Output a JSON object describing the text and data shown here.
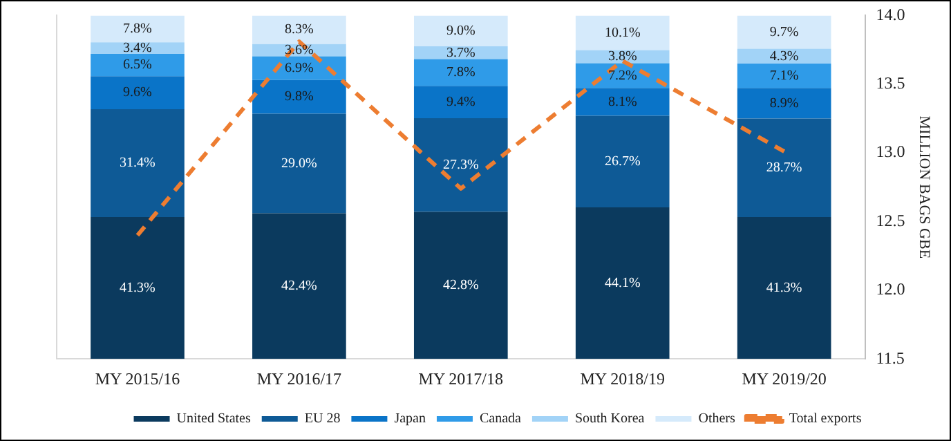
{
  "chart_data": {
    "type": "bar",
    "stacked": true,
    "categories": [
      "MY 2015/16",
      "MY 2016/17",
      "MY 2017/18",
      "MY 2018/19",
      "MY 2019/20"
    ],
    "series": [
      {
        "name": "United States",
        "color": "#0b3a5e",
        "values": [
          41.3,
          42.4,
          42.8,
          44.1,
          41.3
        ],
        "value_labels": [
          "41.3%",
          "42.4%",
          "42.8%",
          "44.1%",
          "41.3%"
        ]
      },
      {
        "name": "EU 28",
        "color": "#0e5a96",
        "values": [
          31.4,
          29.0,
          27.3,
          26.7,
          28.7
        ],
        "value_labels": [
          "31.4%",
          "29.0%",
          "27.3%",
          "26.7%",
          "28.7%"
        ]
      },
      {
        "name": "Japan",
        "color": "#0a74c8",
        "values": [
          9.6,
          9.8,
          9.4,
          8.1,
          8.9
        ],
        "value_labels": [
          "9.6%",
          "9.8%",
          "9.4%",
          "8.1%",
          "8.9%"
        ]
      },
      {
        "name": "Canada",
        "color": "#2f9be8",
        "values": [
          6.5,
          6.9,
          7.8,
          7.2,
          7.1
        ],
        "value_labels": [
          "6.5%",
          "6.9%",
          "7.8%",
          "7.2%",
          "7.1%"
        ]
      },
      {
        "name": "South Korea",
        "color": "#a2d3f7",
        "values": [
          3.4,
          3.6,
          3.7,
          3.8,
          4.3
        ],
        "value_labels": [
          "3.4%",
          "3.6%",
          "3.7%",
          "3.8%",
          "4.3%"
        ]
      },
      {
        "name": "Others",
        "color": "#d5eafb",
        "values": [
          7.8,
          8.3,
          9.0,
          10.1,
          9.7
        ],
        "value_labels": [
          "7.8%",
          "8.3%",
          "9.0%",
          "10.1%",
          "9.7%"
        ]
      },
      {
        "name": "Total exports",
        "type": "line",
        "axis": "y2",
        "color": "#ed7d31",
        "line_style": "dashed",
        "marker": "none",
        "values": [
          12.4,
          13.81,
          12.74,
          13.67,
          13.01
        ]
      }
    ],
    "ylim": [
      0,
      100
    ],
    "y2lim": [
      11.5,
      14.0
    ],
    "y2ticks": [
      {
        "value": 11.5,
        "label": "11.5"
      },
      {
        "value": 12.0,
        "label": "12.0"
      },
      {
        "value": 12.5,
        "label": "12.5"
      },
      {
        "value": 13.0,
        "label": "13.0"
      },
      {
        "value": 13.5,
        "label": "13.5"
      },
      {
        "value": 14.0,
        "label": "14.0"
      }
    ],
    "y2label": "MILLION BAGS GBE",
    "tick_labels": [
      "x",
      "y2"
    ],
    "grid": false,
    "legend": "bottom"
  }
}
